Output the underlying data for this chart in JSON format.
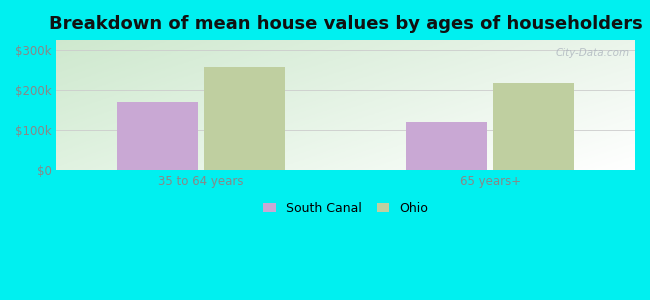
{
  "title": "Breakdown of mean house values by ages of householders",
  "categories": [
    "35 to 64 years",
    "65 years+"
  ],
  "series": {
    "South Canal": [
      170000,
      120000
    ],
    "Ohio": [
      258000,
      218000
    ]
  },
  "series_colors": {
    "South Canal": "#c9a8d4",
    "Ohio": "#bfcfa0"
  },
  "yticks": [
    0,
    100000,
    200000,
    300000
  ],
  "ytick_labels": [
    "$0",
    "$100k",
    "$200k",
    "$300k"
  ],
  "ylim": [
    0,
    325000
  ],
  "background_color": "#00f0f0",
  "bar_width": 0.28,
  "title_fontsize": 13,
  "tick_fontsize": 8.5,
  "legend_fontsize": 9
}
